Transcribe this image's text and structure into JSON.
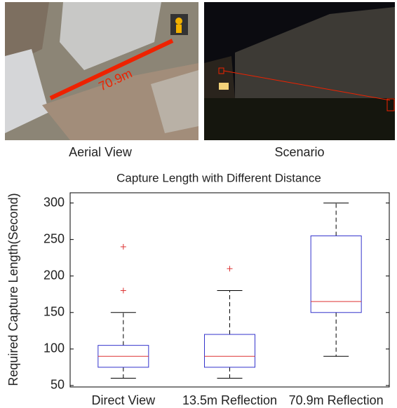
{
  "panels": {
    "aerial": {
      "label": "Aerial View",
      "annotation": "70.9m"
    },
    "scenario": {
      "label": "Scenario"
    }
  },
  "chart_data": {
    "type": "box",
    "title": "Capture Length with Different Distance",
    "y_label": "Required Capture Length(Second)",
    "categories": [
      "Direct View",
      "13.5m Reflection",
      "70.9m Reflection"
    ],
    "boxes": [
      {
        "whislo": 60,
        "q1": 75,
        "med": 90,
        "q3": 105,
        "whishi": 150,
        "fliers": [
          180,
          240
        ]
      },
      {
        "whislo": 60,
        "q1": 75,
        "med": 90,
        "q3": 120,
        "whishi": 180,
        "fliers": [
          210
        ]
      },
      {
        "whislo": 90,
        "q1": 150,
        "med": 165,
        "q3": 255,
        "whishi": 300,
        "fliers": []
      }
    ],
    "box_color": "#3333cc",
    "median_color": "#dd3333",
    "flier_color": "#dd3333",
    "ylim": [
      48,
      314
    ],
    "yticks": [
      50,
      100,
      150,
      200,
      250,
      300
    ]
  }
}
